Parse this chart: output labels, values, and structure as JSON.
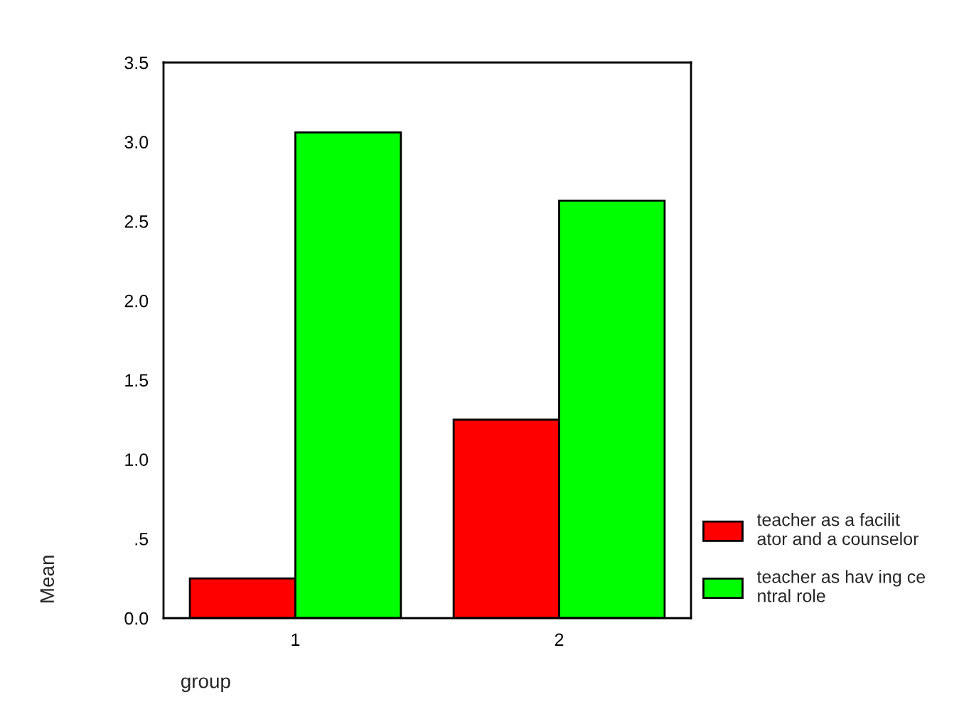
{
  "chart_data": {
    "type": "bar",
    "xlabel": "group",
    "ylabel": "Mean",
    "categories": [
      "1",
      "2"
    ],
    "series": [
      {
        "name": "teacher as a facilit\nator and a counselor",
        "color": "#ff0000",
        "values": [
          0.25,
          1.25
        ]
      },
      {
        "name": "teacher as hav ing ce\nntral role",
        "color": "#00ff00",
        "values": [
          3.06,
          2.63
        ]
      }
    ],
    "ylim": [
      0,
      3.5
    ],
    "yticks": [
      {
        "value": 0,
        "label": "0.0"
      },
      {
        "value": 0.5,
        "label": ".5"
      },
      {
        "value": 1,
        "label": "1.0"
      },
      {
        "value": 1.5,
        "label": "1.5"
      },
      {
        "value": 2,
        "label": "2.0"
      },
      {
        "value": 2.5,
        "label": "2.5"
      },
      {
        "value": 3,
        "label": "3.0"
      },
      {
        "value": 3.5,
        "label": "3.5"
      }
    ],
    "grid": false,
    "legend": "bottom right"
  }
}
